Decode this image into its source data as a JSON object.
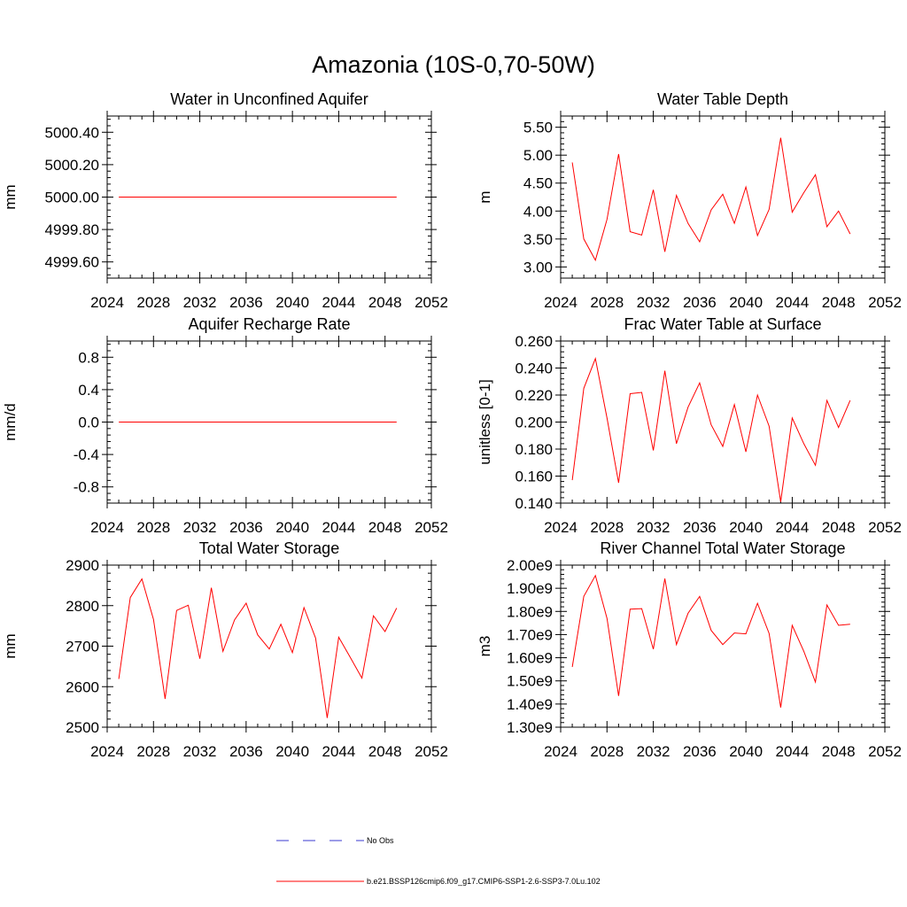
{
  "title": "Amazonia (10S-0,70-50W)",
  "colors": {
    "series": "#ff0000",
    "obs": "#3a3ad0",
    "frame": "#000000"
  },
  "legend": {
    "entries": [
      {
        "label": "No Obs",
        "style": "dashed",
        "color": "#3a3ad0"
      },
      {
        "label": "b.e21.BSSP126cmip6.f09_g17.CMIP6-SSP1-2.6-SSP3-7.0Lu.102",
        "style": "solid",
        "color": "#ff0000"
      }
    ]
  },
  "chart_data": [
    {
      "type": "line",
      "title": "Water in Unconfined Aquifer",
      "ylabel": "mm",
      "xlabel": "",
      "xlim": [
        2024,
        2052
      ],
      "xticks": [
        2024,
        2028,
        2032,
        2036,
        2040,
        2044,
        2048,
        2052
      ],
      "ylim": [
        4999.5,
        5000.5
      ],
      "yticks": [
        4999.6,
        4999.8,
        5000.0,
        5000.2,
        5000.4
      ],
      "ytick_labels": [
        "4999.60",
        "4999.80",
        "5000.00",
        "5000.20",
        "5000.40"
      ],
      "x": [
        2025,
        2026,
        2027,
        2028,
        2029,
        2030,
        2031,
        2032,
        2033,
        2034,
        2035,
        2036,
        2037,
        2038,
        2039,
        2040,
        2041,
        2042,
        2043,
        2044,
        2045,
        2046,
        2047,
        2048,
        2049
      ],
      "series": [
        {
          "values": [
            5000,
            5000,
            5000,
            5000,
            5000,
            5000,
            5000,
            5000,
            5000,
            5000,
            5000,
            5000,
            5000,
            5000,
            5000,
            5000,
            5000,
            5000,
            5000,
            5000,
            5000,
            5000,
            5000,
            5000,
            5000
          ]
        }
      ]
    },
    {
      "type": "line",
      "title": "Water Table Depth",
      "ylabel": "m",
      "xlabel": "",
      "xlim": [
        2024,
        2052
      ],
      "xticks": [
        2024,
        2028,
        2032,
        2036,
        2040,
        2044,
        2048,
        2052
      ],
      "ylim": [
        2.8,
        5.7
      ],
      "yticks": [
        3.0,
        3.5,
        4.0,
        4.5,
        5.0,
        5.5
      ],
      "ytick_labels": [
        "3.00",
        "3.50",
        "4.00",
        "4.50",
        "5.00",
        "5.50"
      ],
      "x": [
        2025,
        2026,
        2027,
        2028,
        2029,
        2030,
        2031,
        2032,
        2033,
        2034,
        2035,
        2036,
        2037,
        2038,
        2039,
        2040,
        2041,
        2042,
        2043,
        2044,
        2045,
        2046,
        2047,
        2048,
        2049
      ],
      "series": [
        {
          "values": [
            4.87,
            3.5,
            3.12,
            3.85,
            5.02,
            3.63,
            3.57,
            4.38,
            3.27,
            4.28,
            3.78,
            3.45,
            4.02,
            4.3,
            3.78,
            4.43,
            3.56,
            4.03,
            5.31,
            3.98,
            4.33,
            4.65,
            3.72,
            4.0,
            3.59
          ]
        }
      ]
    },
    {
      "type": "line",
      "title": "Aquifer Recharge Rate",
      "ylabel": "mm/d",
      "xlabel": "",
      "xlim": [
        2024,
        2052
      ],
      "xticks": [
        2024,
        2028,
        2032,
        2036,
        2040,
        2044,
        2048,
        2052
      ],
      "ylim": [
        -1.0,
        1.0
      ],
      "yticks": [
        -0.8,
        -0.4,
        0.0,
        0.4,
        0.8
      ],
      "ytick_labels": [
        "-0.8",
        "-0.4",
        "0.0",
        "0.4",
        "0.8"
      ],
      "x": [
        2025,
        2026,
        2027,
        2028,
        2029,
        2030,
        2031,
        2032,
        2033,
        2034,
        2035,
        2036,
        2037,
        2038,
        2039,
        2040,
        2041,
        2042,
        2043,
        2044,
        2045,
        2046,
        2047,
        2048,
        2049
      ],
      "series": [
        {
          "values": [
            0,
            0,
            0,
            0,
            0,
            0,
            0,
            0,
            0,
            0,
            0,
            0,
            0,
            0,
            0,
            0,
            0,
            0,
            0,
            0,
            0,
            0,
            0,
            0,
            0
          ]
        }
      ]
    },
    {
      "type": "line",
      "title": "Frac Water Table at Surface",
      "ylabel": "unitless [0-1]",
      "xlabel": "",
      "xlim": [
        2024,
        2052
      ],
      "xticks": [
        2024,
        2028,
        2032,
        2036,
        2040,
        2044,
        2048,
        2052
      ],
      "ylim": [
        0.14,
        0.26
      ],
      "yticks": [
        0.14,
        0.16,
        0.18,
        0.2,
        0.22,
        0.24,
        0.26
      ],
      "ytick_labels": [
        "0.140",
        "0.160",
        "0.180",
        "0.200",
        "0.220",
        "0.240",
        "0.260"
      ],
      "x": [
        2025,
        2026,
        2027,
        2028,
        2029,
        2030,
        2031,
        2032,
        2033,
        2034,
        2035,
        2036,
        2037,
        2038,
        2039,
        2040,
        2041,
        2042,
        2043,
        2044,
        2045,
        2046,
        2047,
        2048,
        2049
      ],
      "series": [
        {
          "values": [
            0.157,
            0.225,
            0.247,
            0.203,
            0.155,
            0.221,
            0.222,
            0.179,
            0.238,
            0.184,
            0.211,
            0.229,
            0.198,
            0.182,
            0.213,
            0.178,
            0.22,
            0.197,
            0.141,
            0.203,
            0.184,
            0.168,
            0.216,
            0.196,
            0.216
          ]
        }
      ]
    },
    {
      "type": "line",
      "title": "Total Water Storage",
      "ylabel": "mm",
      "xlabel": "",
      "xlim": [
        2024,
        2052
      ],
      "xticks": [
        2024,
        2028,
        2032,
        2036,
        2040,
        2044,
        2048,
        2052
      ],
      "ylim": [
        2500,
        2900
      ],
      "yticks": [
        2500,
        2600,
        2700,
        2800,
        2900
      ],
      "ytick_labels": [
        "2500",
        "2600",
        "2700",
        "2800",
        "2900"
      ],
      "x": [
        2025,
        2026,
        2027,
        2028,
        2029,
        2030,
        2031,
        2032,
        2033,
        2034,
        2035,
        2036,
        2037,
        2038,
        2039,
        2040,
        2041,
        2042,
        2043,
        2044,
        2045,
        2046,
        2047,
        2048,
        2049
      ],
      "series": [
        {
          "values": [
            2619,
            2820,
            2866,
            2766,
            2570,
            2788,
            2801,
            2669,
            2844,
            2687,
            2765,
            2806,
            2728,
            2693,
            2754,
            2684,
            2795,
            2720,
            2523,
            2722,
            2672,
            2621,
            2775,
            2736,
            2794
          ]
        }
      ]
    },
    {
      "type": "line",
      "title": "River Channel Total Water Storage",
      "ylabel": "m3",
      "xlabel": "",
      "xlim": [
        2024,
        2052
      ],
      "xticks": [
        2024,
        2028,
        2032,
        2036,
        2040,
        2044,
        2048,
        2052
      ],
      "ylim": [
        1300000000,
        2000000000
      ],
      "yticks": [
        1300000000,
        1400000000,
        1500000000,
        1600000000,
        1700000000,
        1800000000,
        1900000000,
        2000000000
      ],
      "ytick_labels": [
        "1.30e9",
        "1.40e9",
        "1.50e9",
        "1.60e9",
        "1.70e9",
        "1.80e9",
        "1.90e9",
        "2.00e9"
      ],
      "x": [
        2025,
        2026,
        2027,
        2028,
        2029,
        2030,
        2031,
        2032,
        2033,
        2034,
        2035,
        2036,
        2037,
        2038,
        2039,
        2040,
        2041,
        2042,
        2043,
        2044,
        2045,
        2046,
        2047,
        2048,
        2049
      ],
      "series": [
        {
          "values": [
            1560000000,
            1865000000,
            1955000000,
            1770000000,
            1435000000,
            1810000000,
            1812000000,
            1637000000,
            1942000000,
            1657000000,
            1792000000,
            1865000000,
            1718000000,
            1657000000,
            1707000000,
            1703000000,
            1835000000,
            1705000000,
            1385000000,
            1740000000,
            1628000000,
            1495000000,
            1828000000,
            1740000000,
            1745000000
          ]
        }
      ]
    }
  ]
}
